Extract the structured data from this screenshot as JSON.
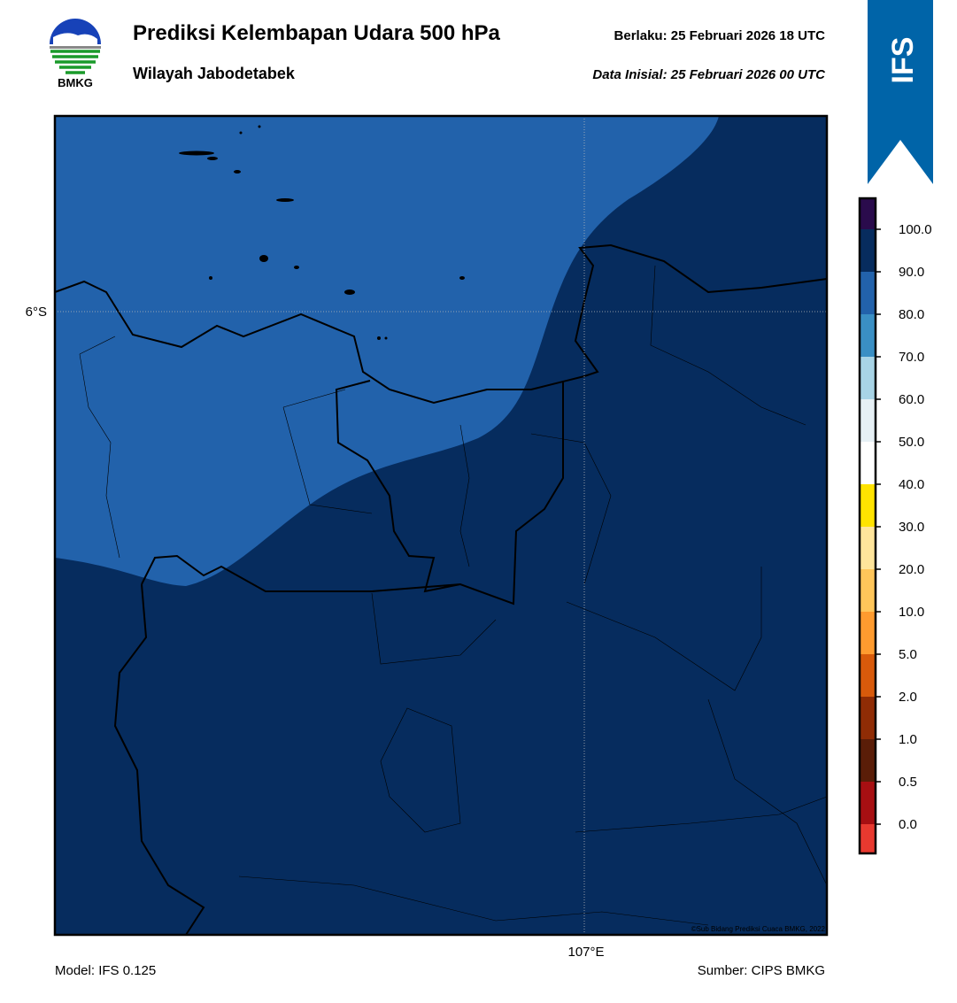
{
  "header": {
    "title": "Prediksi Kelembapan Udara 500 hPa",
    "subtitle": "Wilayah Jabodetabek",
    "valid": "Berlaku:  25 Februari 2026 18 UTC",
    "init": "Data Inisial:  25 Februari 2026 00 UTC",
    "logo": "BMKG",
    "badge": "IFS"
  },
  "map": {
    "lat_label": "6°S",
    "lon_label": "107°E",
    "copyright": "©Sub Bidang Prediksi Cuaca BMKG, 2022"
  },
  "legend": {
    "colors": [
      "#e8392f",
      "#a70f12",
      "#5a1d08",
      "#8f2c05",
      "#d85a0b",
      "#fe9b2f",
      "#ffc65a",
      "#ffe59b",
      "#ffe300",
      "#ffffff",
      "#e6f0f5",
      "#a8d4e6",
      "#3a8fc4",
      "#2262ab",
      "#072c5e",
      "#2a0b4c"
    ],
    "ticks": [
      {
        "value": 0,
        "label": "0.0"
      },
      {
        "value": 0.5,
        "label": "0.5"
      },
      {
        "value": 1,
        "label": "1.0"
      },
      {
        "value": 2,
        "label": "2.0"
      },
      {
        "value": 5,
        "label": "5.0"
      },
      {
        "value": 10,
        "label": "10.0"
      },
      {
        "value": 20,
        "label": "20.0"
      },
      {
        "value": 30,
        "label": "30.0"
      },
      {
        "value": 40,
        "label": "40.0"
      },
      {
        "value": 50,
        "label": "50.0"
      },
      {
        "value": 60,
        "label": "60.0"
      },
      {
        "value": 70,
        "label": "70.0"
      },
      {
        "value": 80,
        "label": "80.0"
      },
      {
        "value": 90,
        "label": "90.0"
      },
      {
        "value": 100,
        "label": "100.0"
      }
    ]
  },
  "footer": {
    "model": "Model: IFS 0.125",
    "source": "Sumber: CIPS BMKG"
  }
}
